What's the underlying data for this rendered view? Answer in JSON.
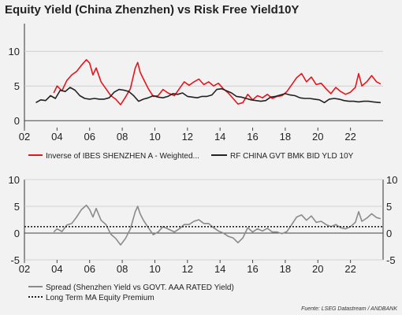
{
  "title": "Equity Yield (China Zhenzhen) vs Risk Free Yield10Y",
  "source": "Fuente: LSEG Datastream / ANDBANK",
  "colors": {
    "red": "#e8141c",
    "black": "#222222",
    "gray": "#8a8a8a",
    "dotted": "#222222"
  },
  "chart_data": [
    {
      "type": "line",
      "x_range": [
        2002,
        2024
      ],
      "ylim": [
        -1,
        14
      ],
      "x_ticks": [
        "02",
        "04",
        "06",
        "08",
        "10",
        "12",
        "14",
        "16",
        "18",
        "20",
        "22"
      ],
      "y_ticks": [
        0,
        5,
        10
      ],
      "grid": true,
      "legend_position": "bottom",
      "series": [
        {
          "name": "Inverse of IBES SHENZHEN A - Weighted...",
          "color": "#e8141c",
          "x": [
            2003.8,
            2004.0,
            2004.3,
            2004.6,
            2004.9,
            2005.2,
            2005.5,
            2005.8,
            2006.0,
            2006.2,
            2006.4,
            2006.7,
            2007.0,
            2007.3,
            2007.6,
            2007.9,
            2008.2,
            2008.5,
            2008.8,
            2008.95,
            2009.1,
            2009.3,
            2009.6,
            2009.9,
            2010.2,
            2010.5,
            2010.8,
            2011.2,
            2011.5,
            2011.8,
            2012.1,
            2012.4,
            2012.7,
            2013.0,
            2013.3,
            2013.6,
            2013.9,
            2014.2,
            2014.5,
            2014.8,
            2015.1,
            2015.4,
            2015.7,
            2016.0,
            2016.3,
            2016.6,
            2016.9,
            2017.2,
            2017.5,
            2017.8,
            2018.1,
            2018.4,
            2018.7,
            2019.0,
            2019.3,
            2019.6,
            2019.9,
            2020.2,
            2020.5,
            2020.8,
            2021.1,
            2021.4,
            2021.7,
            2022.0,
            2022.3,
            2022.5,
            2022.7,
            2023.0,
            2023.3,
            2023.6,
            2023.85
          ],
          "y": [
            4.0,
            5.0,
            4.3,
            5.8,
            6.6,
            7.1,
            8.0,
            8.8,
            8.3,
            6.6,
            7.6,
            5.6,
            4.6,
            3.6,
            3.1,
            2.3,
            3.4,
            4.6,
            7.6,
            8.4,
            7.0,
            6.0,
            4.6,
            3.5,
            3.6,
            4.5,
            4.0,
            3.6,
            4.6,
            5.6,
            5.1,
            5.6,
            6.0,
            5.2,
            5.6,
            5.0,
            5.4,
            4.6,
            4.0,
            3.2,
            2.4,
            2.6,
            3.8,
            3.0,
            3.6,
            3.3,
            3.8,
            3.2,
            3.5,
            3.6,
            4.2,
            5.2,
            6.2,
            6.8,
            5.6,
            6.3,
            5.2,
            5.4,
            4.6,
            3.9,
            4.8,
            4.2,
            3.8,
            4.1,
            4.8,
            6.8,
            5.0,
            5.6,
            6.5,
            5.6,
            5.3
          ]
        },
        {
          "name": "RF CHINA GVT BMK BID YLD 10Y",
          "color": "#222222",
          "x": [
            2002.7,
            2003.0,
            2003.3,
            2003.6,
            2003.9,
            2004.2,
            2004.5,
            2004.8,
            2005.1,
            2005.4,
            2005.7,
            2006.0,
            2006.3,
            2006.6,
            2006.9,
            2007.2,
            2007.5,
            2007.8,
            2008.1,
            2008.4,
            2008.7,
            2009.0,
            2009.3,
            2009.6,
            2009.9,
            2010.2,
            2010.5,
            2010.8,
            2011.1,
            2011.4,
            2011.7,
            2012.0,
            2012.3,
            2012.6,
            2012.9,
            2013.2,
            2013.5,
            2013.8,
            2014.1,
            2014.4,
            2014.7,
            2015.0,
            2015.3,
            2015.6,
            2015.9,
            2016.2,
            2016.5,
            2016.8,
            2017.1,
            2017.4,
            2017.7,
            2018.0,
            2018.3,
            2018.6,
            2018.9,
            2019.2,
            2019.5,
            2019.8,
            2020.1,
            2020.4,
            2020.7,
            2021.0,
            2021.3,
            2021.6,
            2021.9,
            2022.2,
            2022.5,
            2022.8,
            2023.1,
            2023.4,
            2023.85
          ],
          "y": [
            2.6,
            3.0,
            2.9,
            3.6,
            3.2,
            4.4,
            4.2,
            4.8,
            4.4,
            3.6,
            3.2,
            3.1,
            3.2,
            3.1,
            3.1,
            3.3,
            4.1,
            4.5,
            4.4,
            4.2,
            3.6,
            2.8,
            3.1,
            3.3,
            3.6,
            3.4,
            3.3,
            3.5,
            3.9,
            3.8,
            4.0,
            3.5,
            3.4,
            3.3,
            3.5,
            3.5,
            3.7,
            4.5,
            4.6,
            4.3,
            4.0,
            3.5,
            3.4,
            3.2,
            3.0,
            2.9,
            2.8,
            2.9,
            3.4,
            3.5,
            3.7,
            3.9,
            3.7,
            3.6,
            3.3,
            3.2,
            3.2,
            3.1,
            3.0,
            2.6,
            3.1,
            3.2,
            3.1,
            2.9,
            2.8,
            2.8,
            2.7,
            2.8,
            2.8,
            2.7,
            2.6
          ]
        }
      ]
    },
    {
      "type": "line",
      "x_range": [
        2002,
        2024
      ],
      "ylim": [
        -5,
        10
      ],
      "x_ticks": [
        "02",
        "04",
        "06",
        "08",
        "10",
        "12",
        "14",
        "16",
        "18",
        "20",
        "22"
      ],
      "y_ticks": [
        -5,
        0,
        5,
        10
      ],
      "grid": true,
      "legend_position": "bottom",
      "series": [
        {
          "name": "Spread (Shenzhen Yield vs GOVT. AAA RATED Yield)",
          "color": "#8a8a8a",
          "x": [
            2003.8,
            2004.0,
            2004.3,
            2004.6,
            2004.9,
            2005.2,
            2005.5,
            2005.8,
            2006.0,
            2006.2,
            2006.4,
            2006.7,
            2007.0,
            2007.3,
            2007.6,
            2007.9,
            2008.2,
            2008.5,
            2008.8,
            2008.95,
            2009.1,
            2009.3,
            2009.6,
            2009.9,
            2010.2,
            2010.5,
            2010.8,
            2011.2,
            2011.5,
            2011.8,
            2012.1,
            2012.4,
            2012.7,
            2013.0,
            2013.3,
            2013.6,
            2013.9,
            2014.2,
            2014.5,
            2014.8,
            2015.1,
            2015.4,
            2015.7,
            2016.0,
            2016.3,
            2016.6,
            2016.9,
            2017.2,
            2017.5,
            2017.8,
            2018.1,
            2018.4,
            2018.7,
            2019.0,
            2019.3,
            2019.6,
            2019.9,
            2020.2,
            2020.5,
            2020.8,
            2021.1,
            2021.4,
            2021.7,
            2022.0,
            2022.3,
            2022.5,
            2022.7,
            2023.0,
            2023.3,
            2023.6,
            2023.85
          ],
          "y": [
            0.2,
            0.8,
            0.3,
            1.5,
            1.8,
            3.0,
            4.4,
            5.2,
            4.4,
            3.0,
            4.6,
            2.4,
            1.6,
            -0.2,
            -1.0,
            -2.2,
            -1.0,
            0.8,
            4.0,
            5.0,
            3.6,
            2.4,
            1.0,
            -0.3,
            0.2,
            1.2,
            0.8,
            0.2,
            0.8,
            1.6,
            1.6,
            2.2,
            2.5,
            1.8,
            1.8,
            1.0,
            0.4,
            0.0,
            -0.6,
            -0.9,
            -1.8,
            -0.9,
            1.0,
            0.2,
            0.8,
            0.4,
            0.9,
            0.2,
            0.2,
            -0.1,
            0.3,
            1.6,
            3.0,
            3.4,
            2.4,
            3.2,
            2.0,
            2.2,
            1.6,
            1.2,
            1.6,
            1.0,
            0.8,
            1.2,
            2.0,
            4.0,
            2.2,
            2.8,
            3.6,
            2.9,
            2.7
          ]
        },
        {
          "name": "Long Term MA Equity Premium",
          "color": "#222222",
          "style": "dotted",
          "x": [
            2002,
            2024
          ],
          "y": [
            1.2,
            1.2
          ]
        }
      ]
    }
  ]
}
